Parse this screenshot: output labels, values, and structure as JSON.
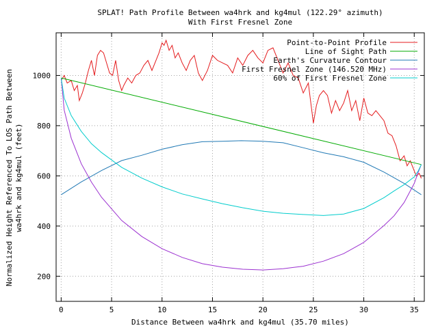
{
  "chart_data": {
    "type": "line",
    "title": "SPLAT! Path Profile Between wa4hrk and kg4mul (122.29° azimuth)",
    "subtitle": "With First Fresnel Zone",
    "xlabel": "Distance Between wa4hrk and kg4mul (35.70 miles)",
    "ylabel_line1": "Normalized Height Referenced To LOS Path Between",
    "ylabel_line2": "wa4hrk and kg4mul (feet)",
    "xlim": [
      -0.5,
      36
    ],
    "ylim": [
      100,
      1170
    ],
    "xticks": [
      0,
      5,
      10,
      15,
      20,
      25,
      30,
      35
    ],
    "yticks": [
      200,
      400,
      600,
      800,
      1000
    ],
    "grid": true,
    "legend_position": "top-right",
    "series": [
      {
        "name": "Point-to-Point Profile",
        "color": "#e41a1c",
        "x": [
          0,
          0.3,
          0.6,
          1.0,
          1.3,
          1.6,
          1.8,
          2.1,
          2.4,
          2.7,
          3.0,
          3.3,
          3.6,
          3.9,
          4.2,
          4.5,
          4.8,
          5.1,
          5.4,
          5.7,
          6.0,
          6.2,
          6.6,
          7.0,
          7.4,
          7.8,
          8.2,
          8.6,
          9.0,
          9.4,
          9.7,
          10.0,
          10.2,
          10.4,
          10.7,
          11.0,
          11.3,
          11.6,
          12.0,
          12.4,
          12.8,
          13.2,
          13.6,
          14.0,
          14.5,
          15.0,
          15.5,
          16.0,
          16.5,
          17.0,
          17.5,
          18.0,
          18.5,
          19.0,
          19.5,
          20.0,
          20.5,
          21.0,
          21.5,
          22.0,
          22.5,
          23.0,
          23.5,
          24.0,
          24.5,
          25.0,
          25.3,
          25.6,
          26.0,
          26.4,
          26.8,
          27.2,
          27.6,
          28.0,
          28.4,
          28.8,
          29.2,
          29.6,
          30.0,
          30.4,
          30.8,
          31.2,
          31.6,
          32.0,
          32.4,
          32.8,
          33.2,
          33.6,
          34.0,
          34.3,
          34.6,
          34.9,
          35.2,
          35.5,
          35.7
        ],
        "y": [
          980,
          1000,
          970,
          980,
          940,
          960,
          900,
          930,
          970,
          1020,
          1060,
          1000,
          1080,
          1100,
          1090,
          1050,
          1010,
          1000,
          1060,
          980,
          940,
          960,
          990,
          970,
          1000,
          1010,
          1040,
          1060,
          1020,
          1060,
          1090,
          1130,
          1120,
          1140,
          1100,
          1120,
          1070,
          1090,
          1050,
          1020,
          1060,
          1080,
          1010,
          980,
          1020,
          1080,
          1060,
          1050,
          1040,
          1010,
          1070,
          1040,
          1080,
          1100,
          1070,
          1050,
          1100,
          1110,
          1060,
          1010,
          1050,
          1000,
          990,
          930,
          970,
          810,
          880,
          920,
          940,
          920,
          850,
          900,
          860,
          890,
          940,
          860,
          900,
          820,
          910,
          850,
          840,
          860,
          840,
          820,
          770,
          760,
          720,
          660,
          680,
          640,
          660,
          630,
          600,
          610,
          590
        ]
      },
      {
        "name": "Line of Sight Path",
        "color": "#00aa00",
        "x": [
          0,
          35.7
        ],
        "y": [
          990,
          645
        ]
      },
      {
        "name": "Earth's Curvature Contour",
        "color": "#1f78b4",
        "x": [
          0,
          2,
          4,
          6,
          8,
          10,
          12,
          14,
          16,
          17.85,
          20,
          22,
          24,
          26,
          28,
          30,
          32,
          34,
          35.7
        ],
        "y": [
          525,
          576,
          621,
          661,
          682,
          706,
          724,
          736,
          738,
          740,
          738,
          732,
          712,
          692,
          676,
          654,
          615,
          570,
          525
        ]
      },
      {
        "name": "First Fresnel Zone (146.520 MHz)",
        "color": "#9b30d0",
        "x": [
          0,
          0.3,
          1,
          2,
          3,
          4,
          6,
          8,
          10,
          12,
          14,
          16,
          18,
          20,
          22,
          23,
          24,
          26,
          28,
          30,
          32,
          33,
          34,
          35,
          35.4,
          35.7
        ],
        "y": [
          990,
          862,
          750,
          648,
          575,
          515,
          422,
          358,
          310,
          275,
          250,
          236,
          228,
          225,
          230,
          235,
          240,
          260,
          290,
          335,
          402,
          441,
          494,
          570,
          615,
          645
        ]
      },
      {
        "name": "60% of First Fresnel Zone",
        "color": "#00cccc",
        "x": [
          0,
          0.3,
          1,
          2,
          3,
          4,
          6,
          8,
          10,
          12,
          14,
          16,
          18,
          20,
          22,
          24,
          26,
          28,
          30,
          32,
          33,
          34,
          35,
          35.4,
          35.7
        ],
        "y": [
          990,
          910,
          840,
          777,
          728,
          693,
          634,
          591,
          556,
          528,
          508,
          489,
          473,
          459,
          451,
          446,
          442,
          448,
          470,
          513,
          540,
          565,
          596,
          620,
          645
        ]
      }
    ]
  }
}
